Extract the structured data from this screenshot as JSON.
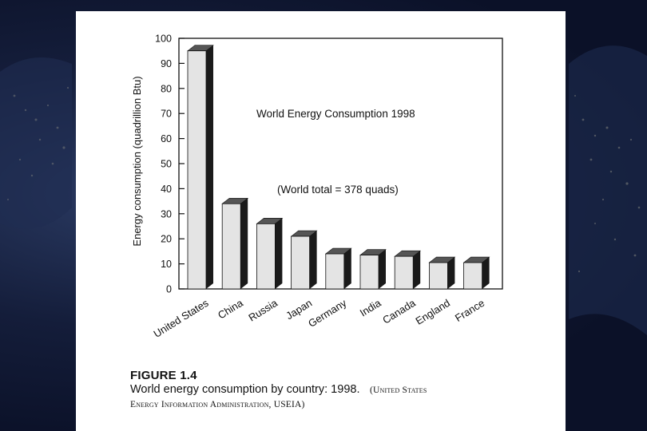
{
  "chart_data": {
    "type": "bar",
    "title": "World Energy Consumption 1998",
    "annotation": "(World total = 378 quads)",
    "ylabel": "Energy consumption (quadrillion Btu)",
    "xlabel": "",
    "categories": [
      "United States",
      "China",
      "Russia",
      "Japan",
      "Germany",
      "India",
      "Canada",
      "England",
      "France"
    ],
    "values": [
      95,
      34,
      26,
      21,
      14,
      13.5,
      13,
      10.5,
      10.5
    ],
    "ylim": [
      0,
      100
    ],
    "yticks": [
      0,
      10,
      20,
      30,
      40,
      50,
      60,
      70,
      80,
      90,
      100
    ],
    "legend": "none",
    "grid": false
  },
  "caption": {
    "figure_label": "FIGURE 1.4",
    "text": "World energy consumption by country: 1998.",
    "source_part1": "(United States",
    "source_part2": "Energy Information Administration, USEIA)"
  },
  "colors": {
    "bar_face": "#e4e4e4",
    "bar_side": "#1a1a1a",
    "bar_top": "#555555",
    "axis": "#111111",
    "paper": "#ffffff"
  }
}
